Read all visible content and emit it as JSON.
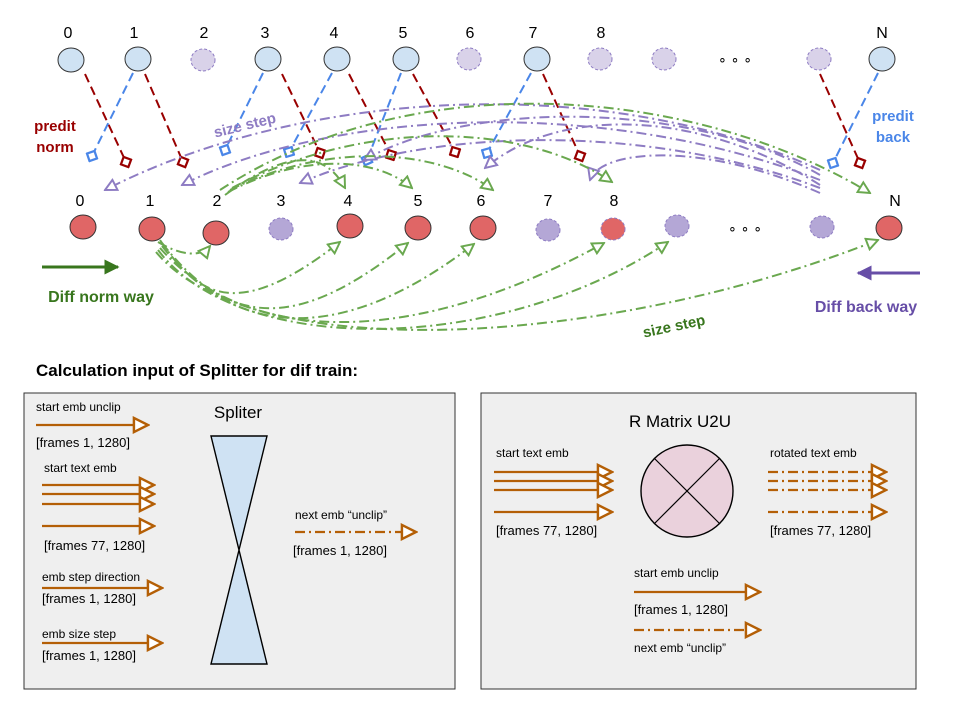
{
  "colors": {
    "top_node_fill": "#cfe2f3",
    "top_node_dashed_fill": "#d9d2e9",
    "bottom_node_fill": "#e06666",
    "bottom_node_dashed_fill": "#b4a7d6",
    "dark_red": "#990000",
    "blue": "#4a86e8",
    "purple": "#8e7cc3",
    "green": "#6aa84f",
    "dark_green": "#38761d",
    "orange": "#b45f06",
    "dark_purple": "#674ea7",
    "panel_fill": "#efefef",
    "splitter_fill": "#cfe2f3",
    "matrix_fill": "#ead1dc"
  },
  "top_row": {
    "labels": [
      "0",
      "1",
      "2",
      "3",
      "4",
      "5",
      "6",
      "7",
      "8",
      "N"
    ],
    "ellipsis": "∘ ∘ ∘"
  },
  "bottom_row": {
    "labels": [
      "0",
      "1",
      "2",
      "3",
      "4",
      "5",
      "6",
      "7",
      "8",
      "N"
    ],
    "ellipsis": "∘ ∘ ∘"
  },
  "annotations": {
    "predit_norm_line1": "predit",
    "predit_norm_line2": "norm",
    "predit_back_line1": "predit",
    "predit_back_line2": "back",
    "size_step_top": "size step",
    "size_step_bottom": "size step",
    "diff_norm_way": "Diff norm way",
    "diff_back_way": "Diff back way"
  },
  "section_title": "Calculation input of Splitter for dif train:",
  "left_panel": {
    "start_emb_unclip": "start emb unclip",
    "frames_1": "[frames 1, 1280]",
    "start_text_emb": "start text emb",
    "frames_77": "[frames 77, 1280]",
    "emb_step_direction": "emb step direction",
    "frames_1_b": "[frames 1, 1280]",
    "emb_size_step": "emb size step",
    "frames_1_c": "[frames 1, 1280]",
    "spliter_title": "Spliter",
    "next_emb_unclip": "next emb “unclip”",
    "frames_1_d": "[frames 1, 1280]"
  },
  "right_panel": {
    "title": "R Matrix U2U",
    "start_text_emb": "start text emb",
    "frames_77": "[frames 77, 1280]",
    "rotated_text_emb": "rotated text emb",
    "frames_77_b": "[frames 77, 1280]",
    "start_emb_unclip": "start emb unclip",
    "frames_1": "[frames 1, 1280]",
    "next_emb_unclip": "next emb “unclip”"
  }
}
